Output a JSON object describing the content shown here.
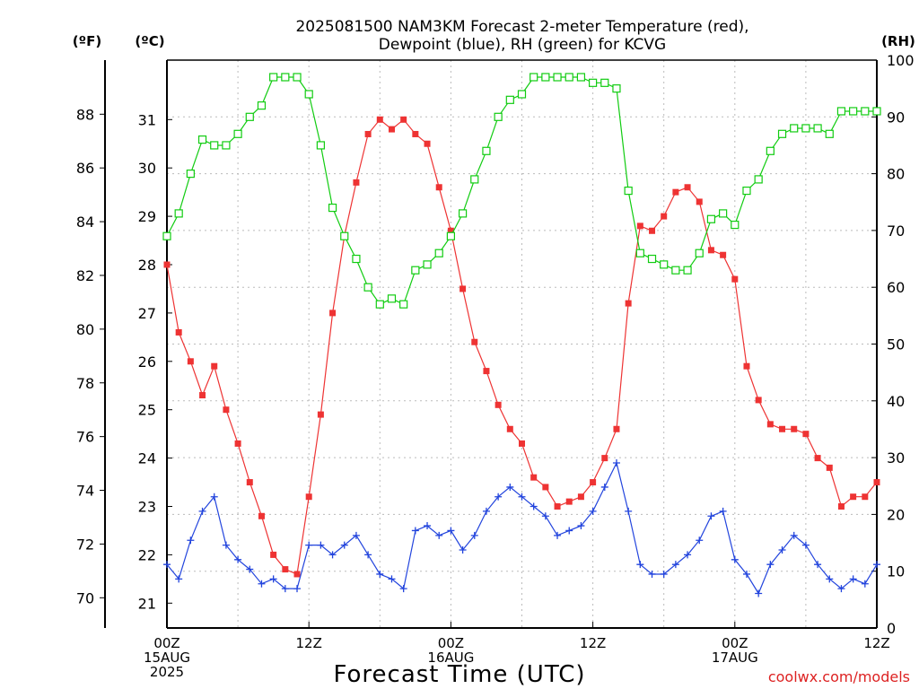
{
  "chart_data": {
    "type": "line",
    "title_line1": "2025081500 NAM3KM Forecast 2-meter Temperature (red),",
    "title_line2": "Dewpoint (blue), RH (green) for KCVG",
    "axis_units": {
      "left_f": "(ºF)",
      "left_c": "(ºC)",
      "right_rh": "(RH)"
    },
    "xlabel": "Forecast Time (UTC)",
    "watermark": "coolwx.com/models",
    "grid": true,
    "x_unit": "forecast hour",
    "xlim": [
      0,
      60
    ],
    "x_ticks": [
      {
        "x": 0,
        "lines": [
          "00Z",
          "15AUG",
          "2025"
        ]
      },
      {
        "x": 12,
        "lines": [
          "12Z"
        ]
      },
      {
        "x": 24,
        "lines": [
          "00Z",
          "16AUG"
        ]
      },
      {
        "x": 36,
        "lines": [
          "12Z"
        ]
      },
      {
        "x": 48,
        "lines": [
          "00Z",
          "17AUG"
        ]
      },
      {
        "x": 60,
        "lines": [
          "12Z"
        ]
      }
    ],
    "y_celsius": {
      "ylim": [
        20.2,
        32.0
      ],
      "ticks": [
        "21",
        "22",
        "23",
        "24",
        "25",
        "26",
        "27",
        "28",
        "29",
        "30",
        "31"
      ]
    },
    "y_fahrenheit": {
      "ticks": [
        "70",
        "72",
        "74",
        "76",
        "78",
        "80",
        "82",
        "84",
        "86",
        "88"
      ]
    },
    "y_rh": {
      "ylim": [
        0,
        100
      ],
      "ticks": [
        "0",
        "10",
        "20",
        "30",
        "40",
        "50",
        "60",
        "70",
        "80",
        "90",
        "100"
      ]
    },
    "colors": {
      "temperature": "#ee3333",
      "dewpoint": "#2244dd",
      "rh": "#11cc11",
      "grid": "#bbbbbb",
      "watermark": "#dd2222"
    },
    "series": [
      {
        "key": "temperature",
        "axis": "celsius",
        "marker": "filled-square",
        "x": [
          0,
          1,
          2,
          3,
          4,
          5,
          6,
          7,
          8,
          9,
          10,
          11,
          12,
          13,
          14,
          15,
          16,
          17,
          18,
          19,
          20,
          21,
          22,
          23,
          24,
          25,
          26,
          27,
          28,
          29,
          30,
          31,
          32,
          33,
          34,
          35,
          36,
          37,
          38,
          39,
          40,
          41,
          42,
          43,
          44,
          45,
          46,
          47,
          48,
          49,
          50,
          51,
          52,
          53,
          54,
          55,
          56,
          57,
          58,
          59,
          60
        ],
        "values": [
          28.0,
          26.6,
          26.0,
          25.3,
          25.9,
          25.0,
          24.3,
          23.5,
          22.8,
          22.0,
          21.7,
          21.6,
          23.2,
          24.9,
          27.0,
          28.6,
          29.7,
          30.7,
          31.0,
          30.8,
          31.0,
          30.7,
          30.5,
          29.6,
          28.7,
          27.5,
          26.4,
          25.8,
          25.1,
          24.6,
          24.3,
          23.6,
          23.4,
          23.0,
          23.1,
          23.2,
          23.5,
          24.0,
          24.6,
          27.2,
          28.8,
          28.7,
          29.0,
          29.5,
          29.6,
          29.3,
          28.3,
          28.2,
          27.7,
          25.9,
          25.2,
          24.7,
          24.6,
          24.6,
          24.5,
          24.0,
          23.8,
          23.0,
          23.2,
          23.2,
          23.5
        ]
      },
      {
        "key": "dewpoint",
        "axis": "celsius",
        "marker": "plus",
        "x": [
          0,
          1,
          2,
          3,
          4,
          5,
          6,
          7,
          8,
          9,
          10,
          11,
          12,
          13,
          14,
          15,
          16,
          17,
          18,
          19,
          20,
          21,
          22,
          23,
          24,
          25,
          26,
          27,
          28,
          29,
          30,
          31,
          32,
          33,
          34,
          35,
          36,
          37,
          38,
          39,
          40,
          41,
          42,
          43,
          44,
          45,
          46,
          47,
          48,
          49,
          50,
          51,
          52,
          53,
          54,
          55,
          56,
          57,
          58,
          59,
          60
        ],
        "values": [
          21.8,
          21.5,
          22.3,
          22.9,
          23.2,
          22.2,
          21.9,
          21.7,
          21.4,
          21.5,
          21.3,
          21.3,
          22.2,
          22.2,
          22.0,
          22.2,
          22.4,
          22.0,
          21.6,
          21.5,
          21.3,
          22.5,
          22.6,
          22.4,
          22.5,
          22.1,
          22.4,
          22.9,
          23.2,
          23.4,
          23.2,
          23.0,
          22.8,
          22.4,
          22.5,
          22.6,
          22.9,
          23.4,
          23.9,
          22.9,
          21.8,
          21.6,
          21.6,
          21.8,
          22.0,
          22.3,
          22.8,
          22.9,
          21.9,
          21.6,
          21.2,
          21.8,
          22.1,
          22.4,
          22.2,
          21.8,
          21.5,
          21.3,
          21.5,
          21.4,
          21.8
        ]
      },
      {
        "key": "rh",
        "axis": "rh",
        "marker": "open-square",
        "x": [
          0,
          1,
          2,
          3,
          4,
          5,
          6,
          7,
          8,
          9,
          10,
          11,
          12,
          13,
          14,
          15,
          16,
          17,
          18,
          19,
          20,
          21,
          22,
          23,
          24,
          25,
          26,
          27,
          28,
          29,
          30,
          31,
          32,
          33,
          34,
          35,
          36,
          37,
          38,
          39,
          40,
          41,
          42,
          43,
          44,
          45,
          46,
          47,
          48,
          49,
          50,
          51,
          52,
          53,
          54,
          55,
          56,
          57,
          58,
          59,
          60
        ],
        "values": [
          69,
          73,
          80,
          86,
          85,
          85,
          87,
          90,
          92,
          97,
          97,
          97,
          94,
          85,
          74,
          69,
          65,
          60,
          57,
          58,
          57,
          63,
          64,
          66,
          69,
          73,
          79,
          84,
          90,
          93,
          94,
          97,
          97,
          97,
          97,
          97,
          96,
          96,
          95,
          77,
          66,
          65,
          64,
          63,
          63,
          66,
          72,
          73,
          71,
          77,
          79,
          84,
          87,
          88,
          88,
          88,
          87,
          91,
          91,
          91,
          91
        ]
      }
    ]
  }
}
